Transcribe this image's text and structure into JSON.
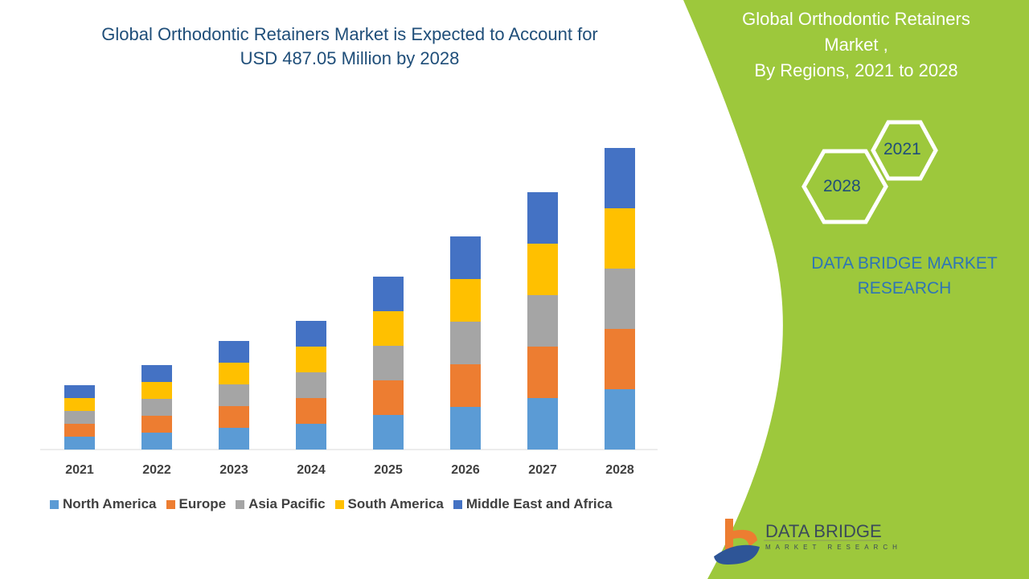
{
  "title": "Global Orthodontic Retainers Market is Expected to Account for USD 487.05 Million by 2028",
  "title_lines": [
    "Global Orthodontic Retainers Market is Expected to Account for",
    "USD 487.05 Million by 2028"
  ],
  "side_panel": {
    "title_lines": [
      "Global Orthodontic Retainers",
      "Market ,",
      "By Regions, 2021 to 2028"
    ],
    "hexagon_years": [
      "2021",
      "2028"
    ],
    "brand_lines": [
      "DATA BRIDGE MARKET",
      "RESEARCH"
    ],
    "logo_text": "DATA BRIDGE",
    "logo_subtext": "MARKET RESEARCH",
    "background_color": "#9dc83c"
  },
  "chart_data": {
    "type": "bar",
    "stacked": true,
    "title": "Global Orthodontic Retainers Market is Expected to Account for USD 487.05 Million by 2028",
    "xlabel": "",
    "ylabel": "",
    "y_axis_shown": false,
    "grid": false,
    "legend_position": "bottom",
    "categories": [
      "2021",
      "2022",
      "2023",
      "2024",
      "2025",
      "2026",
      "2027",
      "2028"
    ],
    "series": [
      {
        "name": "North America",
        "color": "#5b9bd5",
        "values": [
          16,
          21,
          27,
          32,
          43,
          53,
          64,
          75
        ]
      },
      {
        "name": "Europe",
        "color": "#ed7d31",
        "values": [
          16,
          21,
          27,
          32,
          43,
          53,
          64,
          75
        ]
      },
      {
        "name": "Asia Pacific",
        "color": "#a5a5a5",
        "values": [
          16,
          21,
          27,
          32,
          43,
          53,
          64,
          75
        ]
      },
      {
        "name": "South America",
        "color": "#ffc000",
        "values": [
          16,
          21,
          27,
          32,
          43,
          53,
          64,
          75
        ]
      },
      {
        "name": "Middle East and Africa",
        "color": "#4472c4",
        "values": [
          16,
          21,
          27,
          32,
          43,
          53,
          64,
          75
        ]
      }
    ]
  }
}
